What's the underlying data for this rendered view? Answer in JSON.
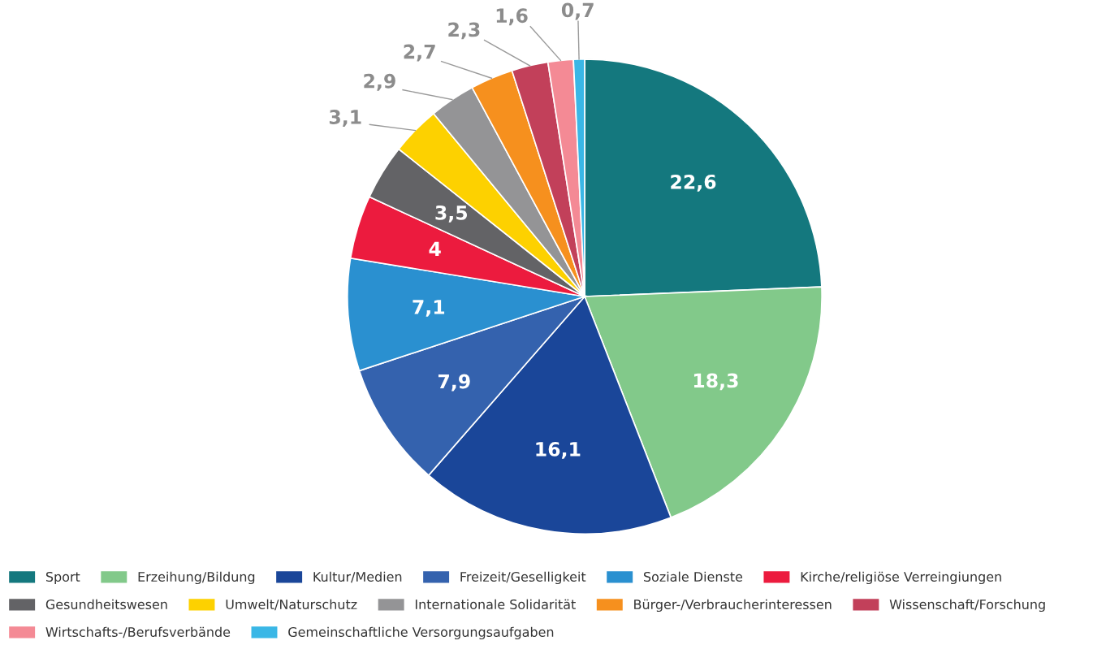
{
  "chart_data": {
    "type": "pie",
    "categories": [
      "Sport",
      "Erzeihung/Bildung",
      "Kultur/Medien",
      "Freizeit/Geselligkeit",
      "Soziale Dienste",
      "Kirche/religiöse Verreingiungen",
      "Gesundheitswesen",
      "Umwelt/Naturschutz",
      "Internationale Solidarität",
      "Bürger-/Verbraucherinteressen",
      "Wissenschaft/Forschung",
      "Wirtschafts-/Berufsverbände",
      "Gemeinschaftliche Versorgungsaufgaben"
    ],
    "values": [
      22.6,
      18.3,
      16.1,
      7.9,
      7.1,
      4,
      3.5,
      3.1,
      2.9,
      2.7,
      2.3,
      1.6,
      0.7
    ],
    "value_labels": [
      "22,6",
      "18,3",
      "16,1",
      "7,9",
      "7,1",
      "4",
      "3,5",
      "3,1",
      "2,9",
      "2,7",
      "2,3",
      "1,6",
      "0,7"
    ],
    "colors": [
      "#14787e",
      "#82c98a",
      "#1a4699",
      "#3462ae",
      "#2a90d0",
      "#ec1b3e",
      "#636366",
      "#fdd100",
      "#949496",
      "#f6901e",
      "#c2405a",
      "#f48a95",
      "#3ab7e6"
    ],
    "legend": "bottom"
  }
}
